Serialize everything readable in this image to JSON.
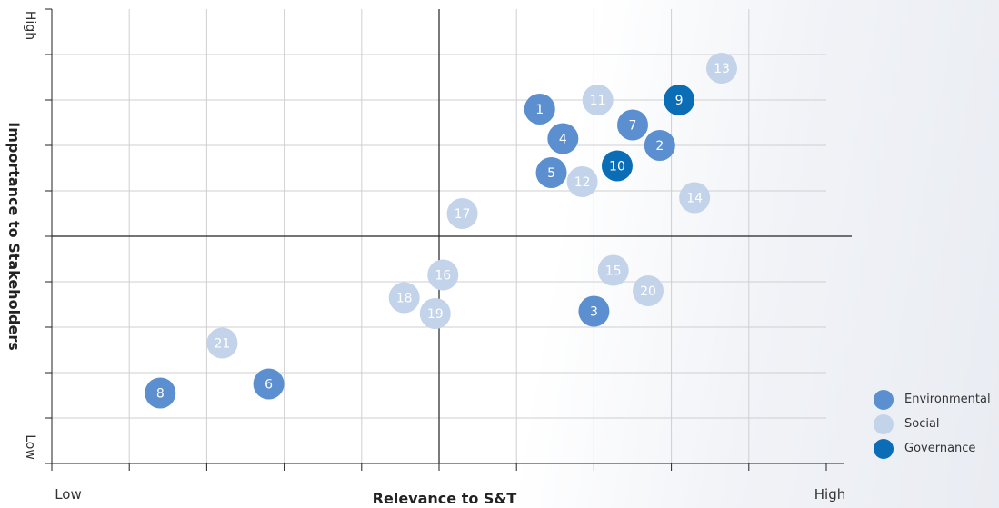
{
  "chart_data": {
    "type": "scatter",
    "xlabel": "Relevance to S&T",
    "ylabel": "Importance to Stakeholders",
    "x_tick_low": "Low",
    "x_tick_high": "High",
    "y_tick_low": "Low",
    "y_tick_high": "High",
    "xlim": [
      0,
      10
    ],
    "ylim": [
      0,
      10
    ],
    "grid": true,
    "legend_position": "bottom-right",
    "series": [
      {
        "name": "Environmental",
        "color": "#5b8fcf",
        "points": [
          {
            "label": "1",
            "x": 6.3,
            "y": 7.8
          },
          {
            "label": "2",
            "x": 7.85,
            "y": 7.0
          },
          {
            "label": "3",
            "x": 7.0,
            "y": 3.35
          },
          {
            "label": "4",
            "x": 6.6,
            "y": 7.15
          },
          {
            "label": "5",
            "x": 6.45,
            "y": 6.4
          },
          {
            "label": "6",
            "x": 2.8,
            "y": 1.75
          },
          {
            "label": "7",
            "x": 7.5,
            "y": 7.45
          },
          {
            "label": "8",
            "x": 1.4,
            "y": 1.55
          }
        ]
      },
      {
        "name": "Social",
        "color": "#c3d3ea",
        "points": [
          {
            "label": "11",
            "x": 7.05,
            "y": 8.0
          },
          {
            "label": "12",
            "x": 6.85,
            "y": 6.2
          },
          {
            "label": "13",
            "x": 8.65,
            "y": 8.7
          },
          {
            "label": "14",
            "x": 8.3,
            "y": 5.85
          },
          {
            "label": "15",
            "x": 7.25,
            "y": 4.25
          },
          {
            "label": "16",
            "x": 5.05,
            "y": 4.15
          },
          {
            "label": "17",
            "x": 5.3,
            "y": 5.5
          },
          {
            "label": "18",
            "x": 4.55,
            "y": 3.65
          },
          {
            "label": "19",
            "x": 4.95,
            "y": 3.3
          },
          {
            "label": "20",
            "x": 7.7,
            "y": 3.8
          },
          {
            "label": "21",
            "x": 2.2,
            "y": 2.65
          }
        ]
      },
      {
        "name": "Governance",
        "color": "#0a6db5",
        "points": [
          {
            "label": "9",
            "x": 8.1,
            "y": 8.0
          },
          {
            "label": "10",
            "x": 7.3,
            "y": 6.55
          }
        ]
      }
    ]
  }
}
